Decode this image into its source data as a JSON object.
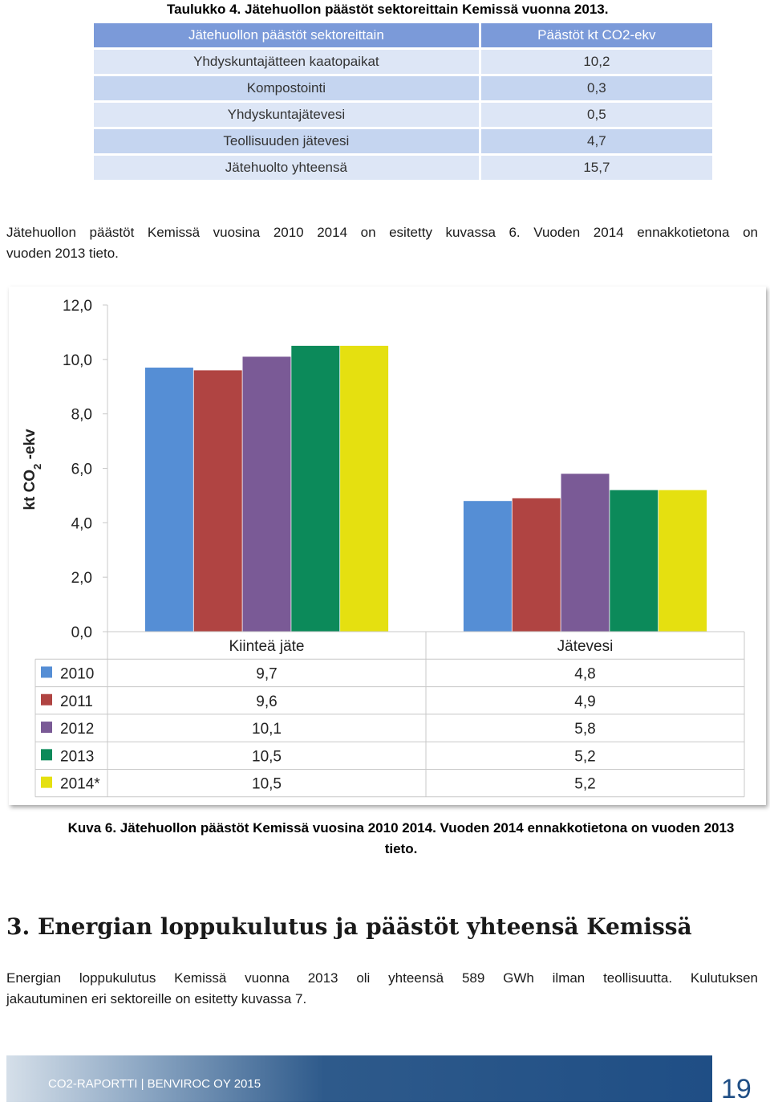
{
  "table_caption": "Taulukko 4. Jätehuollon päästöt sektoreittain Kemissä vuonna 2013.",
  "sector_table": {
    "headers": [
      "Jätehuollon päästöt sektoreittain",
      "Päästöt kt CO2-ekv"
    ],
    "rows": [
      [
        "Yhdyskuntajätteen kaatopaikat",
        "10,2"
      ],
      [
        "Kompostointi",
        "0,3"
      ],
      [
        "Yhdyskuntajätevesi",
        "0,5"
      ],
      [
        "Teollisuuden jätevesi",
        "4,7"
      ],
      [
        "Jätehuolto yhteensä",
        "15,7"
      ]
    ]
  },
  "intro_text": {
    "line1": "Jätehuollon päästöt Kemissä vuosina 2010 2014 on esitetty kuvassa 6. Vuoden 2014 ennakkotietona on",
    "line2": "vuoden 2013 tieto."
  },
  "chart_data": {
    "type": "bar",
    "categories": [
      "Kiinteä jäte",
      "Jätevesi"
    ],
    "series": [
      {
        "name": "2010",
        "values": [
          9.7,
          4.8
        ],
        "labels": [
          "9,7",
          "4,8"
        ],
        "color": "#558ed5"
      },
      {
        "name": "2011",
        "values": [
          9.6,
          4.9
        ],
        "labels": [
          "9,6",
          "4,9"
        ],
        "color": "#b04442"
      },
      {
        "name": "2012",
        "values": [
          10.1,
          5.8
        ],
        "labels": [
          "10,1",
          "5,8"
        ],
        "color": "#7a5a96"
      },
      {
        "name": "2013",
        "values": [
          10.5,
          5.2
        ],
        "labels": [
          "10,5",
          "5,2"
        ],
        "color": "#0c8a5a"
      },
      {
        "name": "2014*",
        "values": [
          10.5,
          5.2
        ],
        "labels": [
          "10,5",
          "5,2"
        ],
        "color": "#e5e010"
      }
    ],
    "ylabel_main": "kt CO",
    "ylabel_sub": "2",
    "ylabel_rest": " -ekv",
    "ylim": [
      0,
      12
    ],
    "yticks": [
      "0,0",
      "2,0",
      "4,0",
      "6,0",
      "8,0",
      "10,0",
      "12,0"
    ],
    "legend": "data-table"
  },
  "figure_caption": {
    "line1": "Kuva 6. Jätehuollon päästöt Kemissä vuosina 2010 2014. Vuoden 2014 ennakkotietona on vuoden 2013",
    "line2": "tieto."
  },
  "section_heading": "3. Energian loppukulutus ja päästöt yhteensä Kemissä",
  "section_text": {
    "line1": "Energian loppukulutus Kemissä vuonna 2013 oli yhteensä 589 GWh ilman teollisuutta. Kulutuksen",
    "line2": "jakautuminen eri sektoreille on esitetty kuvassa 7."
  },
  "footer": {
    "label": "CO2-RAPORTTI | BENVIROC OY 2015",
    "page_number": "19"
  }
}
